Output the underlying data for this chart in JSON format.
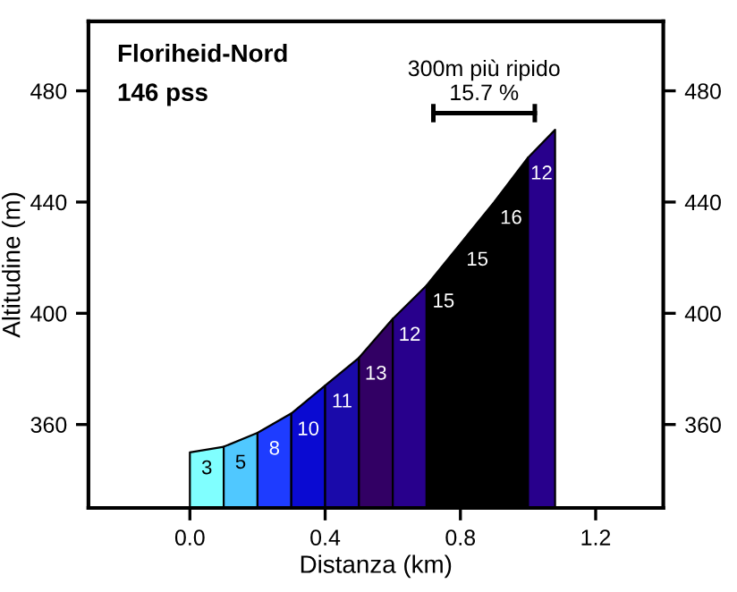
{
  "chart_data": {
    "type": "area",
    "title": "Floriheid-Nord",
    "subtitle": "146 pss",
    "xlabel": "Distanza (km)",
    "ylabel": "Altitudine (m)",
    "series": [
      {
        "x": [
          0.0,
          0.1
        ],
        "values": [
          350,
          352
        ],
        "color": "#80ffff"
      },
      {
        "x": [
          0.1,
          0.2
        ],
        "values": [
          352,
          357
        ],
        "color": "#50c8ff"
      },
      {
        "x": [
          0.2,
          0.3
        ],
        "values": [
          357,
          364
        ],
        "color": "#1e3cff"
      },
      {
        "x": [
          0.3,
          0.4
        ],
        "values": [
          364,
          374
        ],
        "color": "#0a0ad2"
      },
      {
        "x": [
          0.4,
          0.5
        ],
        "values": [
          374,
          384
        ],
        "color": "#1a0aaa"
      },
      {
        "x": [
          0.5,
          0.6
        ],
        "values": [
          384,
          398
        ],
        "color": "#320064"
      },
      {
        "x": [
          0.6,
          0.7
        ],
        "values": [
          398,
          410
        ],
        "color": "#28008c"
      },
      {
        "x": [
          0.7,
          0.8,
          0.9,
          1.0
        ],
        "values": [
          410,
          425,
          440,
          456
        ],
        "color": "#000000"
      },
      {
        "x": [
          1.0,
          1.08
        ],
        "values": [
          456,
          466
        ],
        "color": "#28008c"
      },
      {
        "type": "line",
        "x": [
          0.72,
          1.02
        ],
        "values": [
          472,
          472
        ],
        "color": "#000000"
      }
    ],
    "annotations": [
      "3",
      "5",
      "8",
      "10",
      "11",
      "13",
      "12",
      "15",
      "15",
      "16",
      "12",
      "300m più ripido\n15.7 %"
    ],
    "xlim": [
      -0.3,
      1.4
    ],
    "xticks": [
      {
        "value": 0.0,
        "label": "0.0"
      },
      0.4,
      0.8,
      1.2
    ],
    "ylim": [
      330,
      505
    ],
    "yticks": [
      360,
      400,
      440,
      480
    ],
    "y2lim": [
      330,
      505
    ],
    "y2ticks": [
      360,
      400,
      440,
      480
    ],
    "grid": false,
    "legend": false
  }
}
